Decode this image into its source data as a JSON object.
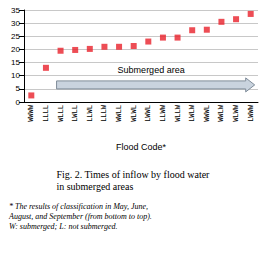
{
  "chart_data": {
    "type": "scatter",
    "title": "Fig. 2. Times of inflow by flood water\nin submerged areas",
    "subtitle": "* The results of classification in May, June,\nAugust, and September (from bottom to top).\nW: submerged; L: not submerged.",
    "x_label": "Flood Code*",
    "categories": [
      "WWWW",
      "LLLL",
      "WLLL",
      "LWLL",
      "LLWL",
      "LLLW",
      "WWLL",
      "WLWL",
      "LWWL",
      "LLWW",
      "WLLW",
      "LWLW",
      "WWWL",
      "WWLW",
      "WLWW",
      "LWWW"
    ],
    "values": [
      2.5,
      13,
      19.5,
      19.8,
      20.2,
      21,
      21,
      21.3,
      23,
      24.5,
      24.5,
      27.3,
      27.5,
      30.5,
      31.5,
      33.5
    ],
    "color": "#e8202a",
    "marker": "square",
    "ylim": [
      0,
      35
    ],
    "yticks": [
      0,
      5,
      10,
      15,
      20,
      25,
      30,
      35
    ],
    "grid": true,
    "annotations": [
      {
        "text": "Submerged area",
        "from": "WLLL",
        "to": "LWWW",
        "y": 6.5
      }
    ]
  }
}
